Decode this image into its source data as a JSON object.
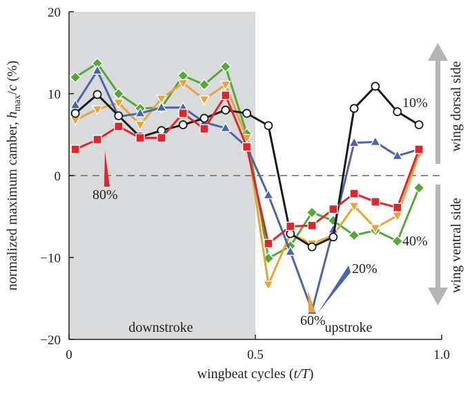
{
  "chart_data": {
    "type": "line",
    "xlabel_parts": [
      "wingbeat cycles (",
      "t/T",
      ")"
    ],
    "ylabel_parts": [
      "normalized maximum camber, ",
      "h",
      "max",
      "/",
      "c",
      " (%)"
    ],
    "xlim": [
      0,
      1.0
    ],
    "ylim": [
      -20,
      20
    ],
    "xticks": [
      0,
      0.5,
      1.0
    ],
    "xtick_labels": [
      "0",
      "0.5",
      "1.0"
    ],
    "yticks": [
      20,
      10,
      0,
      -10,
      -20
    ],
    "ytick_labels": [
      "20",
      "10",
      "0",
      "−10",
      "−20"
    ],
    "shaded_region": {
      "x": [
        0,
        0.5
      ],
      "label": "downstroke"
    },
    "unshaded_label": "upstroke",
    "reference_line": 0,
    "side_labels": {
      "dorsal": "wing dorsal side",
      "ventral": "wing ventral side"
    },
    "x": [
      0.017,
      0.076,
      0.133,
      0.191,
      0.248,
      0.306,
      0.363,
      0.42,
      0.477,
      0.535,
      0.594,
      0.652,
      0.709,
      0.765,
      0.822,
      0.881,
      0.939
    ],
    "series": [
      {
        "name": "10%",
        "color": "#1a1a1a",
        "marker": "circle",
        "values": [
          7.6,
          9.9,
          7.3,
          4.7,
          5.5,
          6.2,
          7.0,
          8.0,
          7.6,
          6.1,
          -7.1,
          -8.7,
          -7.5,
          8.2,
          10.9,
          7.8,
          6.2
        ]
      },
      {
        "name": "20%",
        "color": "#4a64ad",
        "marker": "triangle-up",
        "values": [
          8.6,
          12.8,
          7.2,
          7.6,
          8.3,
          8.3,
          6.5,
          5.8,
          3.5,
          -2.4,
          -9.3,
          -16.5,
          -6.6,
          4.0,
          4.1,
          2.4,
          3.2
        ]
      },
      {
        "name": "40%",
        "color": "#55a838",
        "marker": "diamond",
        "values": [
          12.0,
          13.7,
          10.0,
          8.2,
          8.3,
          12.2,
          11.1,
          13.3,
          5.1,
          -10.1,
          -8.6,
          -4.5,
          -5.5,
          -7.3,
          -6.7,
          -8.0,
          -1.5
        ]
      },
      {
        "name": "60%",
        "color": "#eaa33a",
        "marker": "triangle-down",
        "values": [
          6.8,
          8.1,
          8.9,
          6.2,
          9.4,
          11.3,
          9.3,
          11.1,
          4.6,
          -13.3,
          -7.1,
          -8.3,
          -7.3,
          -3.7,
          -6.4,
          -4.9,
          2.6
        ]
      },
      {
        "name": "80%",
        "color": "#e0262b",
        "marker": "square",
        "values": [
          3.2,
          4.4,
          6.0,
          4.6,
          4.6,
          7.6,
          5.7,
          9.8,
          3.5,
          -8.3,
          -6.2,
          -6.1,
          -4.1,
          -2.2,
          -3.2,
          -3.9,
          3.2
        ]
      }
    ]
  }
}
